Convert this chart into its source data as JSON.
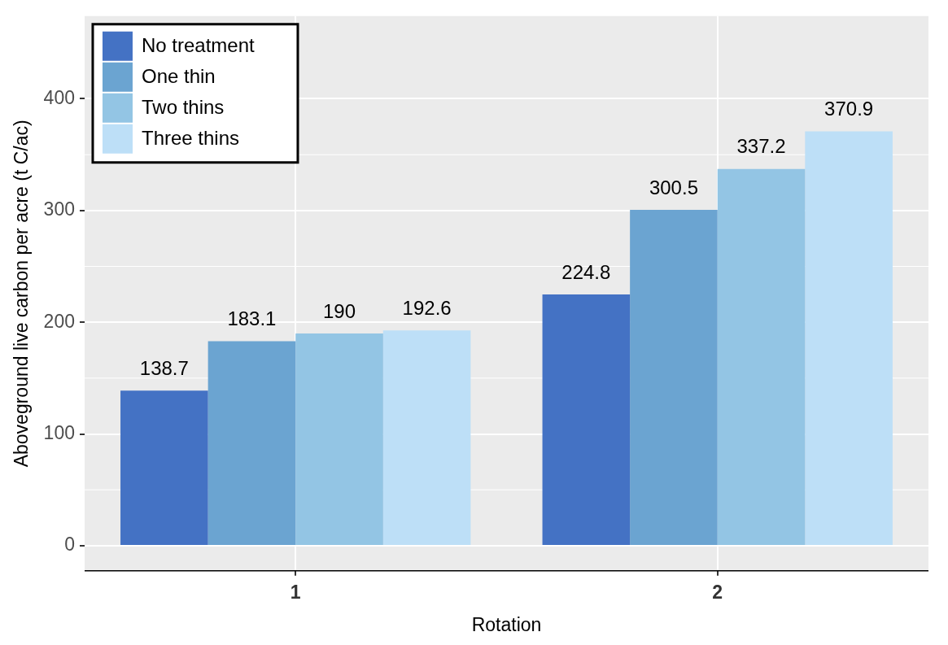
{
  "chart_data": {
    "type": "bar",
    "xlabel": "Rotation",
    "ylabel": "Aboveground live carbon per acre (t C/ac)",
    "categories": [
      "1",
      "2"
    ],
    "series": [
      {
        "name": "No treatment",
        "color": "#4472c4",
        "values": [
          138.7,
          224.8
        ]
      },
      {
        "name": "One thin",
        "color": "#6ba4d1",
        "values": [
          183.1,
          300.5
        ]
      },
      {
        "name": "Two thins",
        "color": "#93c5e4",
        "values": [
          190,
          337.2
        ]
      },
      {
        "name": "Three thins",
        "color": "#bddff7",
        "values": [
          192.6,
          370.9
        ]
      }
    ],
    "ylim": [
      -22.5,
      474
    ],
    "yticks": [
      0,
      100,
      200,
      300,
      400
    ],
    "grid": true,
    "legend": "top left",
    "data_labels": true
  }
}
